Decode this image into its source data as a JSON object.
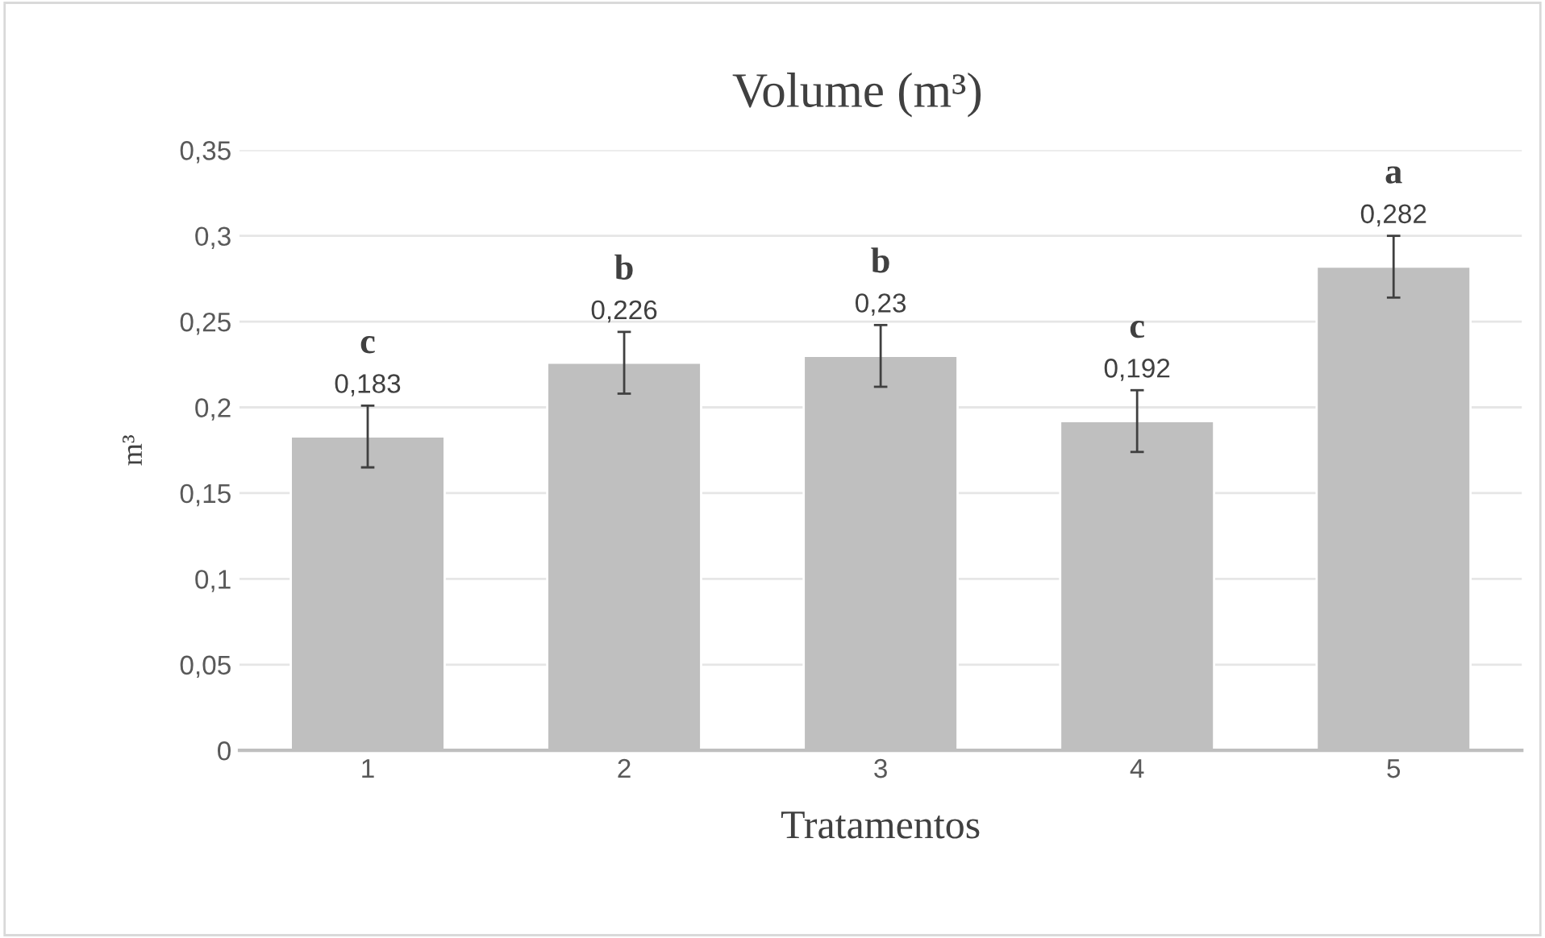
{
  "chart_data": {
    "type": "bar",
    "title": "Volume (m³)",
    "xlabel": "Tratamentos",
    "ylabel": "m³",
    "categories": [
      "1",
      "2",
      "3",
      "4",
      "5"
    ],
    "values": [
      0.183,
      0.226,
      0.23,
      0.192,
      0.282
    ],
    "errors": [
      0.018,
      0.018,
      0.018,
      0.018,
      0.018
    ],
    "value_labels": [
      "0,183",
      "0,226",
      "0,23",
      "0,192",
      "0,282"
    ],
    "color": "#bfbfbf",
    "ylim": [
      0,
      0.35
    ],
    "yticks": [
      0,
      {
        "value": 0.05,
        "label": "0,05"
      },
      {
        "value": 0.1,
        "label": "0,1"
      },
      {
        "value": 0.15,
        "label": "0,15"
      },
      {
        "value": 0.2,
        "label": "0,2"
      },
      {
        "value": 0.25,
        "label": "0,25"
      },
      {
        "value": 0.3,
        "label": "0,3"
      },
      {
        "value": 0.35,
        "label": "0,35"
      }
    ],
    "grid": "y",
    "annotations": [
      "c",
      "b",
      "b",
      "c",
      "a"
    ]
  }
}
